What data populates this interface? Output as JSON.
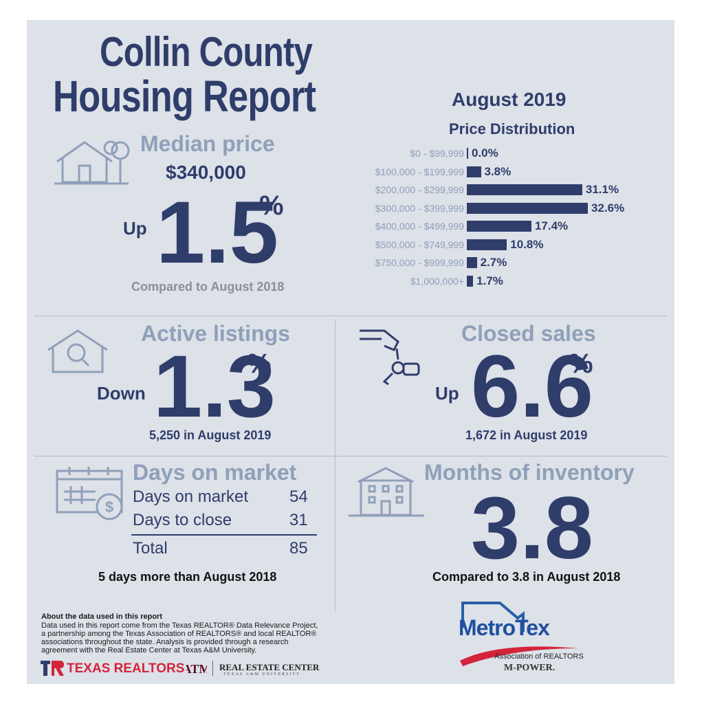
{
  "title": {
    "line1": "Collin County",
    "line2": "Housing Report"
  },
  "period": {
    "month": "August 2019",
    "dist_title": "Price Distribution"
  },
  "median": {
    "heading": "Median price",
    "price": "$340,000",
    "direction": "Up",
    "change": "1.5",
    "pct": "%",
    "compare": "Compared to August 2018",
    "icon": "house-with-tree-icon"
  },
  "chart_data": {
    "type": "bar",
    "title": "Price Distribution",
    "categories": [
      "$0 - $99,999",
      "$100,000 - $199,999",
      "$200,000 - $299,999",
      "$300,000 - $399,999",
      "$400,000 - $499,999",
      "$500,000 - $749,999",
      "$750,000 - $999,999",
      "$1,000,000+"
    ],
    "values": [
      0.0,
      3.8,
      31.1,
      32.6,
      17.4,
      10.8,
      2.7,
      1.7
    ],
    "labels": [
      "0.0%",
      "3.8%",
      "31.1%",
      "32.6%",
      "17.4%",
      "10.8%",
      "2.7%",
      "1.7%"
    ],
    "orientation": "horizontal",
    "grid": false,
    "color": "#2f3d6b"
  },
  "active": {
    "heading": "Active listings",
    "direction": "Down",
    "change": "1.3",
    "pct": "%",
    "note": "5,250 in August 2019",
    "icon": "house-magnifier-icon"
  },
  "closed": {
    "heading": "Closed sales",
    "direction": "Up",
    "change": "6.6",
    "pct": "%",
    "note": "1,672 in August 2019",
    "icon": "hand-keys-icon"
  },
  "dom": {
    "heading": "Days on market",
    "rows": [
      {
        "label": "Days on market",
        "value": "54"
      },
      {
        "label": "Days to close",
        "value": "31"
      }
    ],
    "total_label": "Total",
    "total_value": "85",
    "note": "5 days more than August 2018",
    "icon": "calendar-dollar-icon"
  },
  "inventory": {
    "heading": "Months of inventory",
    "value": "3.8",
    "note": "Compared to 3.8 in August 2018",
    "icon": "apartment-building-icon"
  },
  "about": {
    "heading": "About the data used in this report",
    "body": "Data used in this report come from the Texas REALTOR® Data Relevance Project, a partnership among the Texas Association of REALTORS® and local REALTOR® associations throughout the state. Analysis is provided through a research agreement with the Real Estate Center at Texas A&M University."
  },
  "logos": {
    "texas_realtors": "TEXAS REALTORS",
    "rec": "REAL ESTATE CENTER",
    "rec_sub": "TEXAS A&M UNIVERSITY",
    "metrotex": "MetroTex",
    "metrotex_sub": "Association of REALTORS",
    "mpower": "M-POWER."
  },
  "colors": {
    "navy": "#2f3d6b",
    "accent_gray": "#8fa0b9",
    "background": "#dde1e8",
    "red": "#d3243a"
  }
}
